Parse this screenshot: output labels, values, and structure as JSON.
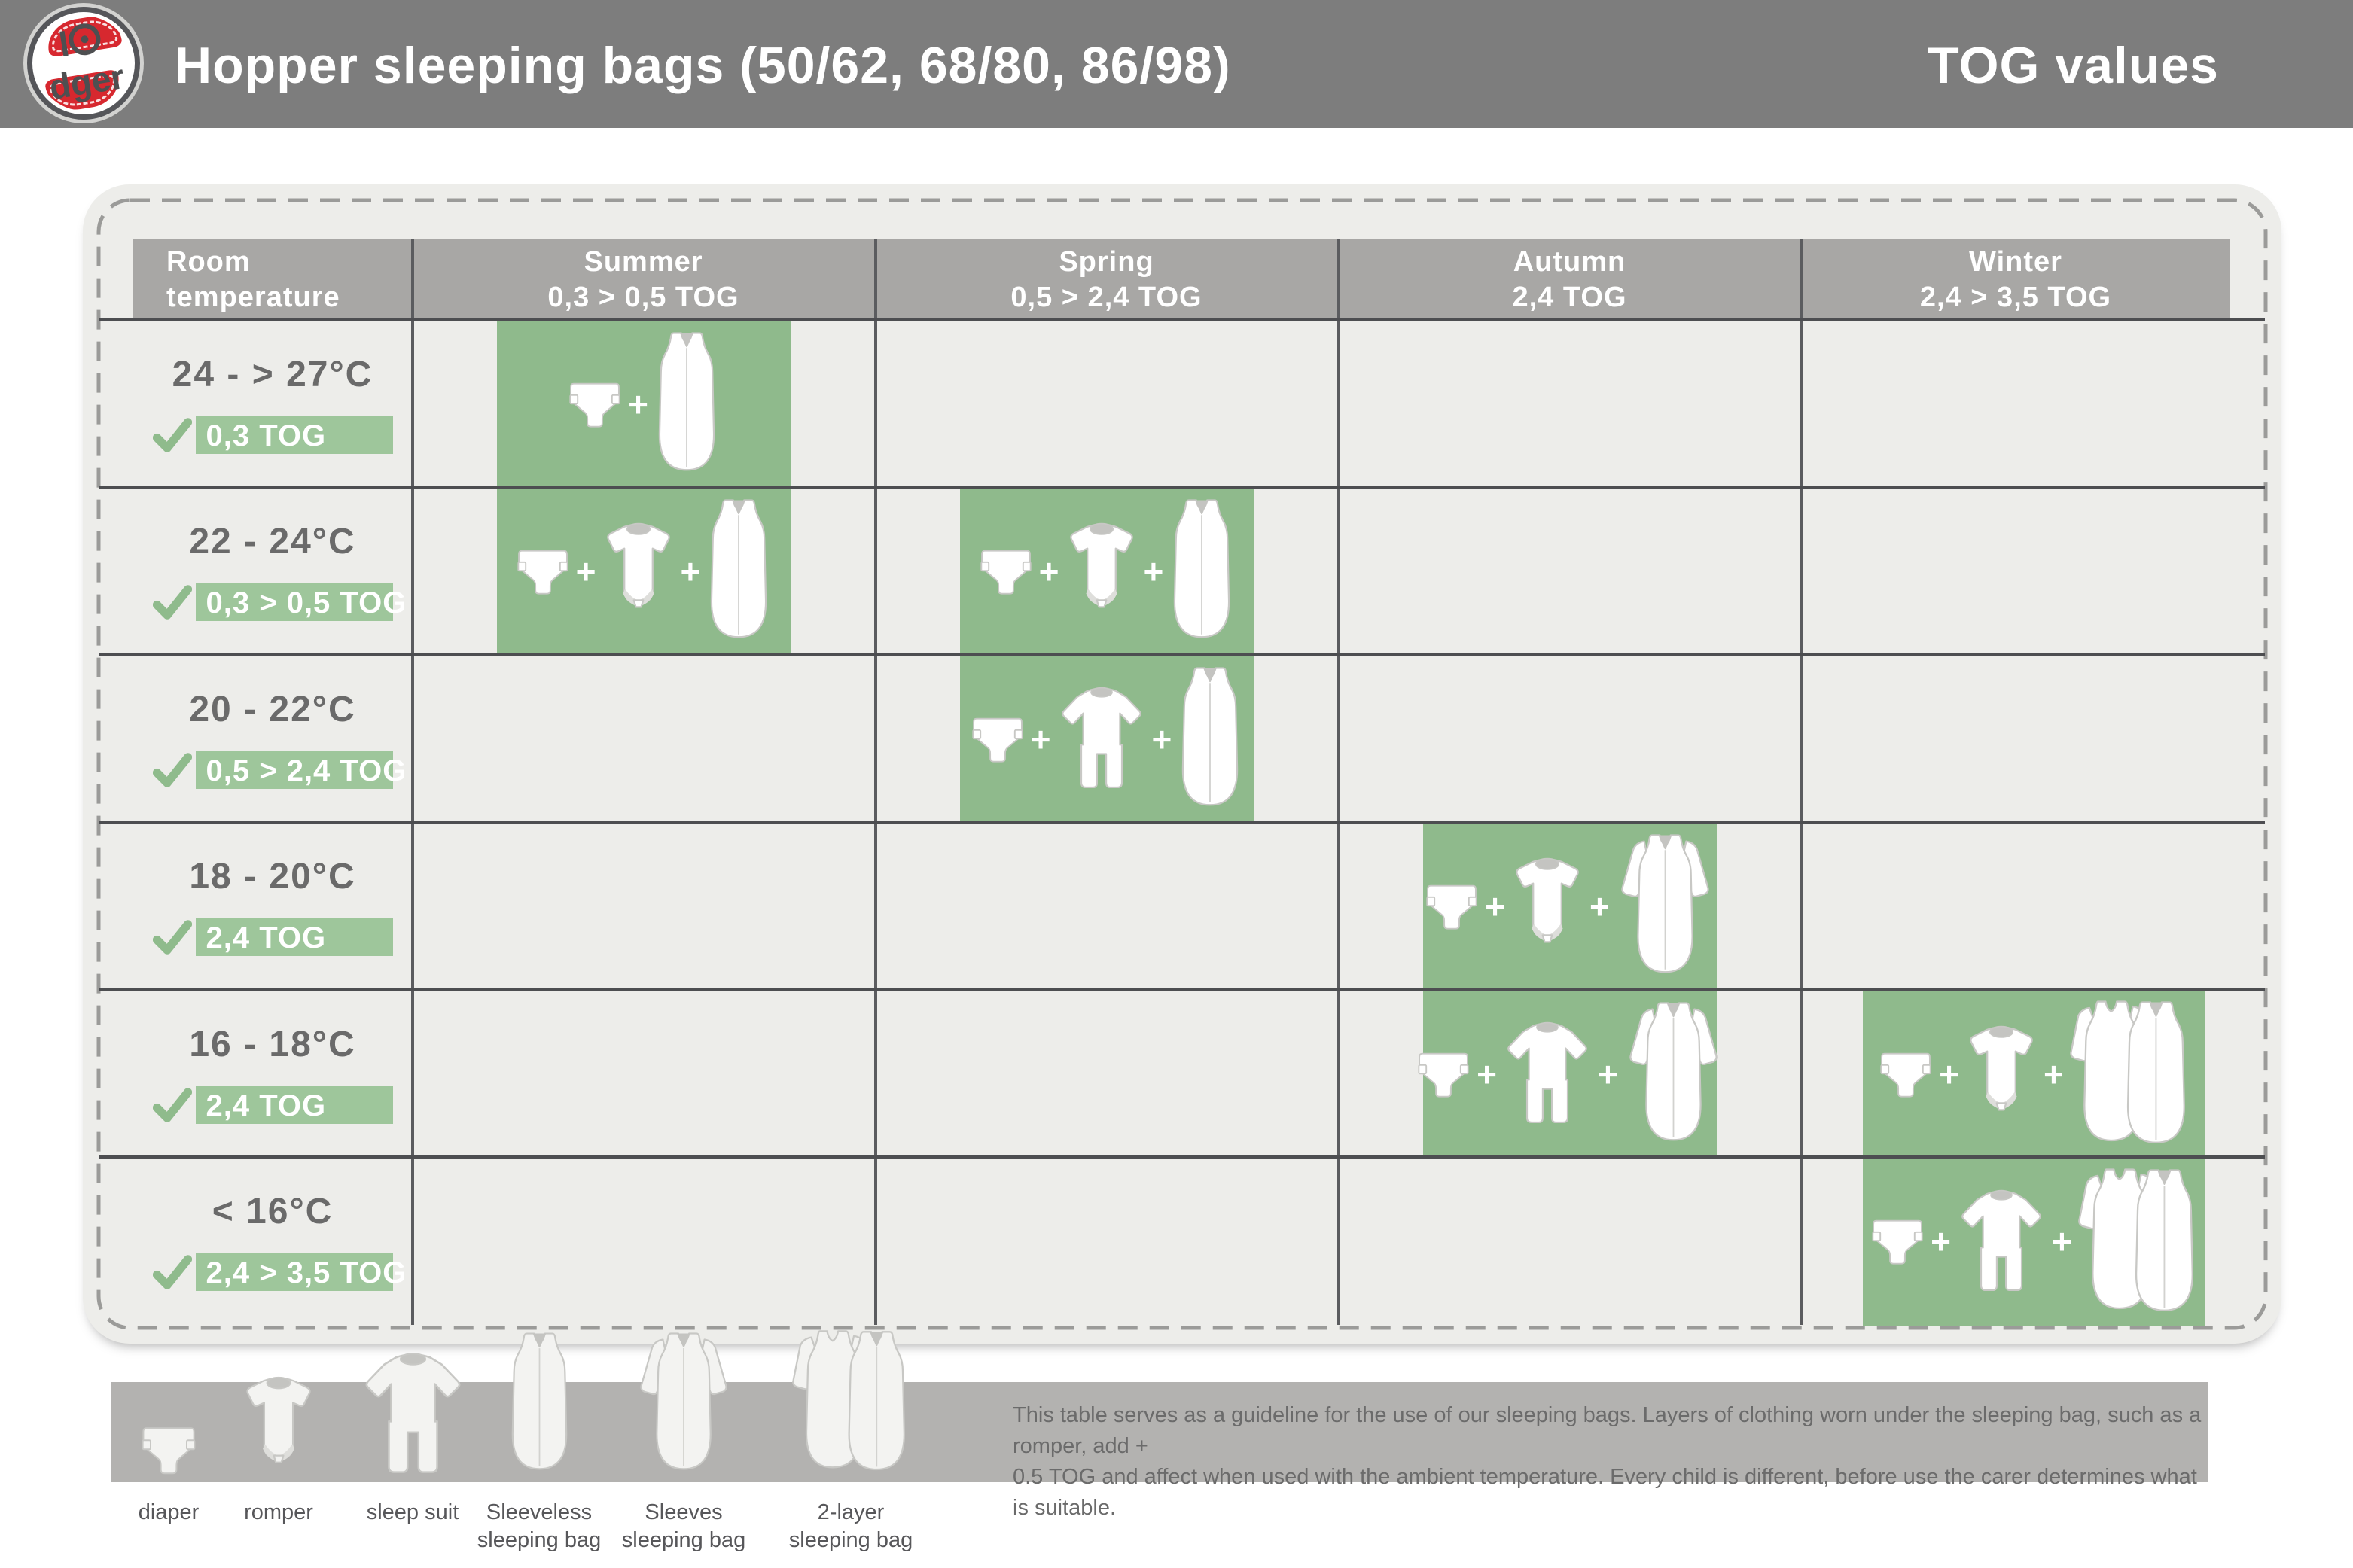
{
  "colors": {
    "topbar": "#7d7d7d",
    "logo_red": "#d7282f",
    "card_bg": "#ededea",
    "column_header_bg": "#a8a7a5",
    "green_block": "#8fba8c",
    "badge_green": "#9ec69b",
    "check_green": "#8fbb8c",
    "temp_text": "#6a6a6a",
    "legend_bar": "#b3b2b0"
  },
  "header": {
    "logo": {
      "prefix": "l",
      "suffix": "dger"
    },
    "title": "Hopper sleeping bags (50/62, 68/80, 86/98)",
    "right_title": "TOG values"
  },
  "table": {
    "columns": [
      {
        "key": "room",
        "title": "Room",
        "subtitle": "temperature"
      },
      {
        "key": "summer",
        "title": "Summer",
        "subtitle": "0,3 > 0,5 TOG"
      },
      {
        "key": "spring",
        "title": "Spring",
        "subtitle": "0,5 > 2,4 TOG"
      },
      {
        "key": "autumn",
        "title": "Autumn",
        "subtitle": "2,4 TOG"
      },
      {
        "key": "winter",
        "title": "Winter",
        "subtitle": "2,4 > 3,5 TOG"
      }
    ],
    "rows": [
      {
        "temp": "24 - > 27°C",
        "tog": "0,3 TOG",
        "cells": {
          "summer": [
            "diaper",
            "sleeveless-bag"
          ]
        }
      },
      {
        "temp": "22 - 24°C",
        "tog": "0,3 > 0,5 TOG",
        "cells": {
          "summer": [
            "diaper",
            "romper",
            "sleeveless-bag"
          ],
          "spring": [
            "diaper",
            "romper",
            "sleeveless-bag"
          ]
        }
      },
      {
        "temp": "20 - 22°C",
        "tog": "0,5 > 2,4 TOG",
        "cells": {
          "spring": [
            "diaper",
            "sleep-suit",
            "sleeveless-bag"
          ]
        }
      },
      {
        "temp": "18 - 20°C",
        "tog": "2,4 TOG",
        "cells": {
          "autumn": [
            "diaper",
            "romper",
            "sleeves-bag"
          ]
        }
      },
      {
        "temp": "16 - 18°C",
        "tog": "2,4 TOG",
        "cells": {
          "autumn": [
            "diaper",
            "sleep-suit",
            "sleeves-bag"
          ],
          "winter": [
            "diaper",
            "romper",
            "two-layer-bag"
          ]
        }
      },
      {
        "temp": "< 16°C",
        "tog": "2,4 > 3,5 TOG",
        "cells": {
          "winter": [
            "diaper",
            "sleep-suit",
            "two-layer-bag"
          ]
        }
      }
    ]
  },
  "legend": {
    "items": [
      {
        "icon": "diaper",
        "label": "diaper"
      },
      {
        "icon": "romper",
        "label": "romper"
      },
      {
        "icon": "sleep-suit",
        "label": "sleep suit"
      },
      {
        "icon": "sleeveless-bag",
        "label": "Sleeveless sleeping bag"
      },
      {
        "icon": "sleeves-bag",
        "label": "Sleeves sleeping bag"
      },
      {
        "icon": "two-layer-bag",
        "label": "2-layer sleeping bag"
      }
    ],
    "note_lines": [
      "This table serves as a guideline for the use of our sleeping bags. Layers of clothing worn under the sleeping bag, such as a romper, add +",
      "0.5 TOG and affect when used with the ambient temperature. Every child is different, before use the carer determines what is suitable."
    ]
  }
}
